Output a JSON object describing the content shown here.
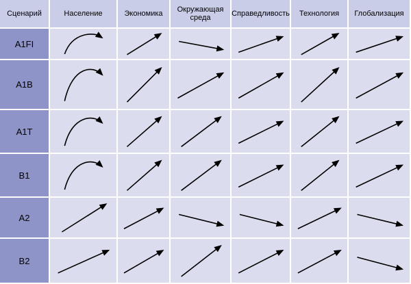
{
  "table": {
    "corner_label": "Сценарий",
    "columns": [
      "Население",
      "Экономика",
      "Окружающая среда",
      "Справедливость",
      "Технология",
      "Глобализация"
    ],
    "rows": [
      {
        "label": "A1FI",
        "trends": [
          "rise-then-plateau",
          "steep-up",
          "gentle-down",
          "moderate-up",
          "steep-up",
          "moderate-up"
        ]
      },
      {
        "label": "A1B",
        "trends": [
          "rise-then-plateau",
          "steep-up",
          "moderate-up",
          "moderate-up",
          "steep-up",
          "moderate-up"
        ]
      },
      {
        "label": "A1T",
        "trends": [
          "rise-then-plateau",
          "steep-up",
          "steep-up",
          "moderate-up",
          "steep-up",
          "moderate-up"
        ]
      },
      {
        "label": "B1",
        "trends": [
          "rise-then-plateau",
          "steep-up",
          "steep-up",
          "moderate-up",
          "steep-up",
          "moderate-up"
        ]
      },
      {
        "label": "A2",
        "trends": [
          "steep-up",
          "moderate-up",
          "gentle-down",
          "gentle-down",
          "moderate-up",
          "gentle-down"
        ]
      },
      {
        "label": "B2",
        "trends": [
          "moderate-up",
          "moderate-up",
          "steep-up",
          "moderate-up",
          "moderate-up",
          "gentle-down"
        ]
      }
    ]
  },
  "colors": {
    "header_bg": "#c9cde8",
    "row_header_bg": "#8e93c8",
    "cell_bg": "#dcdcef",
    "arrow": "#000000",
    "grid": "#ffffff"
  }
}
